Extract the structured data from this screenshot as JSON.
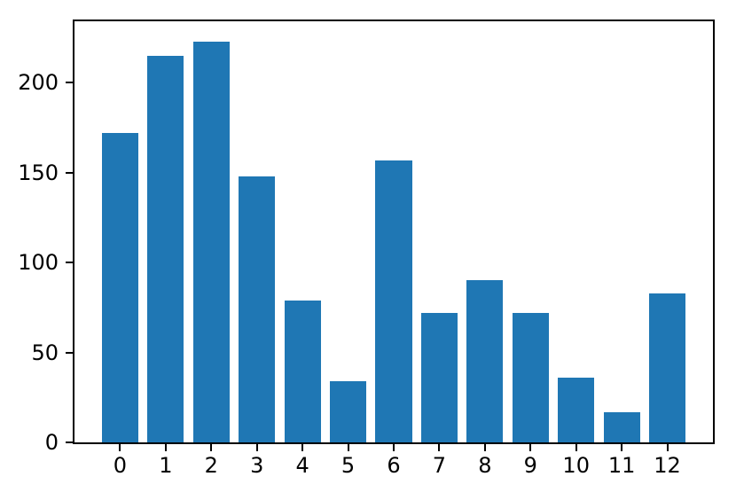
{
  "figure": {
    "background": "#ffffff",
    "axis_color": "#000000"
  },
  "chart_data": {
    "type": "bar",
    "title": "",
    "xlabel": "",
    "ylabel": "",
    "categories": [
      "0",
      "1",
      "2",
      "3",
      "4",
      "5",
      "6",
      "7",
      "8",
      "9",
      "10",
      "11",
      "12"
    ],
    "values": [
      172,
      215,
      223,
      148,
      79,
      34,
      157,
      72,
      90,
      72,
      36,
      17,
      83
    ],
    "yticks": [
      0,
      50,
      100,
      150,
      200
    ],
    "ylim": [
      0,
      234.15
    ],
    "xlim": [
      -1,
      13
    ],
    "bar_width": 0.8,
    "bar_color": "#1f77b4",
    "grid": false,
    "legend": null
  }
}
